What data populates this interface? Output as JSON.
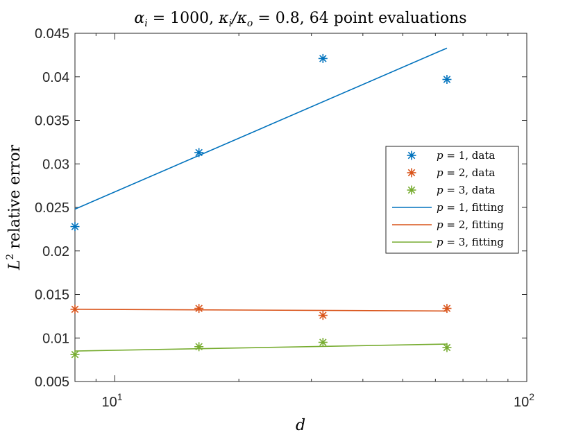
{
  "chart_data": {
    "type": "scatter",
    "title": "αᵢ = 1000, κᵢ/κₒ = 0.8, 64 point evaluations",
    "title_parts": {
      "alpha_i": "α",
      "alpha_sub": "i",
      "alpha_value": " = 1000, ",
      "kappa_i": "κ",
      "kappa_i_sub": "i",
      "slash": "/κ",
      "kappa_o_sub": "o",
      "kappa_value": " = 0.8, 64 point evaluations"
    },
    "xlabel": "d",
    "ylabel": "L² relative error",
    "ylabel_parts": {
      "L": "L",
      "sup": "2",
      "rest": " relative error"
    },
    "xscale": "log",
    "xlim": [
      8,
      100
    ],
    "ylim": [
      0.005,
      0.045
    ],
    "x_ticks": [
      {
        "value": 10,
        "base": "10",
        "exp": "1"
      },
      {
        "value": 100,
        "base": "10",
        "exp": "2"
      }
    ],
    "y_ticks": [
      0.005,
      0.01,
      0.015,
      0.02,
      0.025,
      0.03,
      0.035,
      0.04,
      0.045
    ],
    "y_tick_labels": [
      "0.005",
      "0.01",
      "0.015",
      "0.02",
      "0.025",
      "0.03",
      "0.035",
      "0.04",
      "0.045"
    ],
    "x": [
      8,
      16,
      32,
      64
    ],
    "series": [
      {
        "name": "p = 1, data",
        "kind": "markers",
        "color": "#0072bd",
        "values": [
          0.0228,
          0.0313,
          0.0421,
          0.0397
        ]
      },
      {
        "name": "p = 2, data",
        "kind": "markers",
        "color": "#d95319",
        "values": [
          0.0133,
          0.0134,
          0.0126,
          0.0134
        ]
      },
      {
        "name": "p = 3, data",
        "kind": "markers",
        "color": "#77ac30",
        "values": [
          0.0081,
          0.009,
          0.0095,
          0.0089
        ]
      },
      {
        "name": "p = 1, fitting",
        "kind": "line",
        "color": "#0072bd",
        "x": [
          8,
          64
        ],
        "values": [
          0.0248,
          0.0433
        ]
      },
      {
        "name": "p = 2, fitting",
        "kind": "line",
        "color": "#d95319",
        "x": [
          8,
          64
        ],
        "values": [
          0.0133,
          0.0131
        ]
      },
      {
        "name": "p = 3, fitting",
        "kind": "line",
        "color": "#77ac30",
        "x": [
          8,
          64
        ],
        "values": [
          0.0085,
          0.0093
        ]
      }
    ],
    "legend": {
      "placement": "right",
      "entries": [
        {
          "p": "p",
          "eq": " = 1, ",
          "desc": "data"
        },
        {
          "p": "p",
          "eq": " = 2, ",
          "desc": "data"
        },
        {
          "p": "p",
          "eq": " = 3, ",
          "desc": "data"
        },
        {
          "p": "p",
          "eq": " = 1, ",
          "desc": "fitting"
        },
        {
          "p": "p",
          "eq": " = 2, ",
          "desc": "fitting"
        },
        {
          "p": "p",
          "eq": " = 3, ",
          "desc": "fitting"
        }
      ]
    }
  }
}
